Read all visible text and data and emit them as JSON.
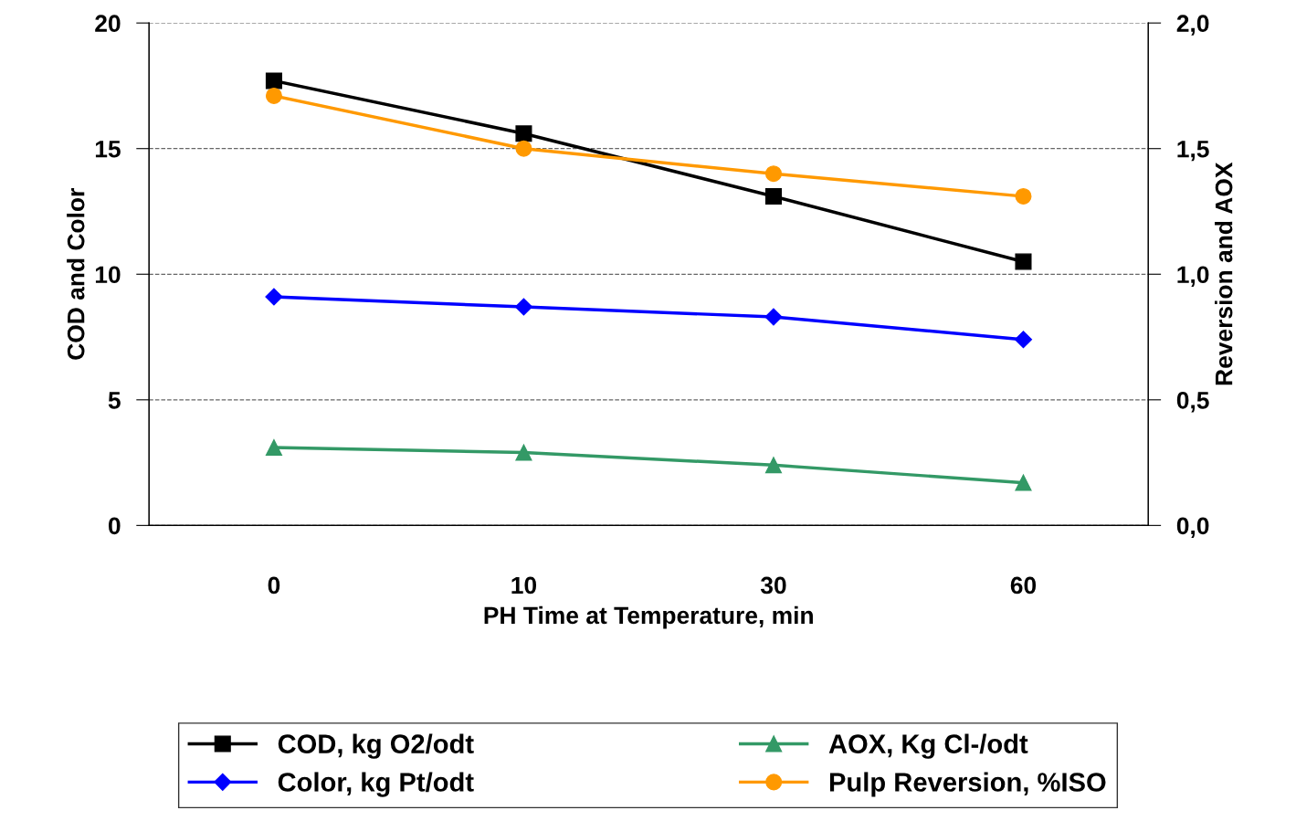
{
  "chart_data": {
    "type": "line",
    "xlabel": "PH Time at Temperature, min",
    "ylabel": "COD and Color",
    "y2label": "Reversion and AOX",
    "categories": [
      "0",
      "10",
      "30",
      "60"
    ],
    "series": [
      {
        "name": "COD, kg O2/odt",
        "color": "#000000",
        "marker": "square",
        "values": [
          17.7,
          15.6,
          13.1,
          10.5
        ]
      },
      {
        "name": "Color, kg Pt/odt",
        "color": "#0000ff",
        "marker": "diamond",
        "values": [
          9.1,
          8.7,
          8.3,
          7.4
        ]
      },
      {
        "name": "AOX, Kg Cl-/odt",
        "color": "#339966",
        "marker": "triangle",
        "axis": "y2",
        "values": [
          0.31,
          0.29,
          0.24,
          0.17
        ]
      },
      {
        "name": "Pulp Reversion, %ISO",
        "color": "#ff9900",
        "marker": "circle",
        "axis": "y2",
        "values": [
          1.71,
          1.5,
          1.4,
          1.31
        ]
      }
    ],
    "ylim": [
      0,
      20
    ],
    "yticks": [
      0,
      5,
      10,
      15,
      20
    ],
    "y2lim": [
      0,
      2
    ],
    "y2ticks": [
      {
        "value": 0,
        "label": "0,0"
      },
      {
        "value": 0.5,
        "label": "0,5"
      },
      {
        "value": 1,
        "label": "1,0"
      },
      {
        "value": 1.5,
        "label": "1,5"
      },
      {
        "value": 2,
        "label": "2,0"
      }
    ],
    "grid": "y",
    "legend": "bottom",
    "line_style": "solid"
  }
}
